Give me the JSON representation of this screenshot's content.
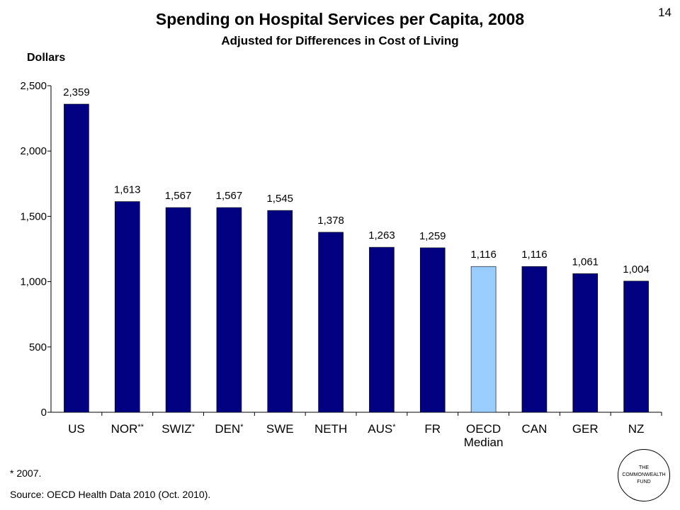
{
  "page_number": "14",
  "footnote": "* 2007.",
  "source": "Source: OECD Health Data 2010 (Oct. 2010).",
  "logo": {
    "line1": "THE",
    "line2": "COMMONWEALTH",
    "line3": "FUND"
  },
  "colors": {
    "bar": "#000080",
    "highlight": "#99ccff"
  },
  "chart_data": {
    "type": "bar",
    "title": "Spending on Hospital Services per Capita, 2008",
    "subtitle": "Adjusted for Differences in Cost of Living",
    "ylabel": "Dollars",
    "ylim": [
      0,
      2500
    ],
    "yticks": [
      {
        "value": 0,
        "label": "0"
      },
      {
        "value": 500,
        "label": "500"
      },
      {
        "value": 1000,
        "label": "1,000"
      },
      {
        "value": 1500,
        "label": "1,500"
      },
      {
        "value": 2000,
        "label": "2,000"
      },
      {
        "value": 2500,
        "label": "2,500"
      }
    ],
    "categories": [
      "US",
      "NOR",
      "SWIZ",
      "DEN",
      "SWE",
      "NETH",
      "AUS",
      "FR",
      "OECD",
      "CAN",
      "GER",
      "NZ"
    ],
    "category_notes": [
      "",
      "**",
      "*",
      "*",
      "",
      "",
      "*",
      "",
      "",
      "",
      "",
      ""
    ],
    "category_second_line": [
      "",
      "",
      "",
      "",
      "",
      "",
      "",
      "",
      "Median",
      "",
      "",
      ""
    ],
    "values": [
      2359,
      1613,
      1567,
      1567,
      1545,
      1378,
      1263,
      1259,
      1116,
      1116,
      1061,
      1004
    ],
    "data_labels": [
      "2,359",
      "1,613",
      "1,567",
      "1,567",
      "1,545",
      "1,378",
      "1,263",
      "1,259",
      "1,116",
      "1,116",
      "1,061",
      "1,004"
    ],
    "highlight_index": 8,
    "grid": false,
    "legend": "none"
  }
}
